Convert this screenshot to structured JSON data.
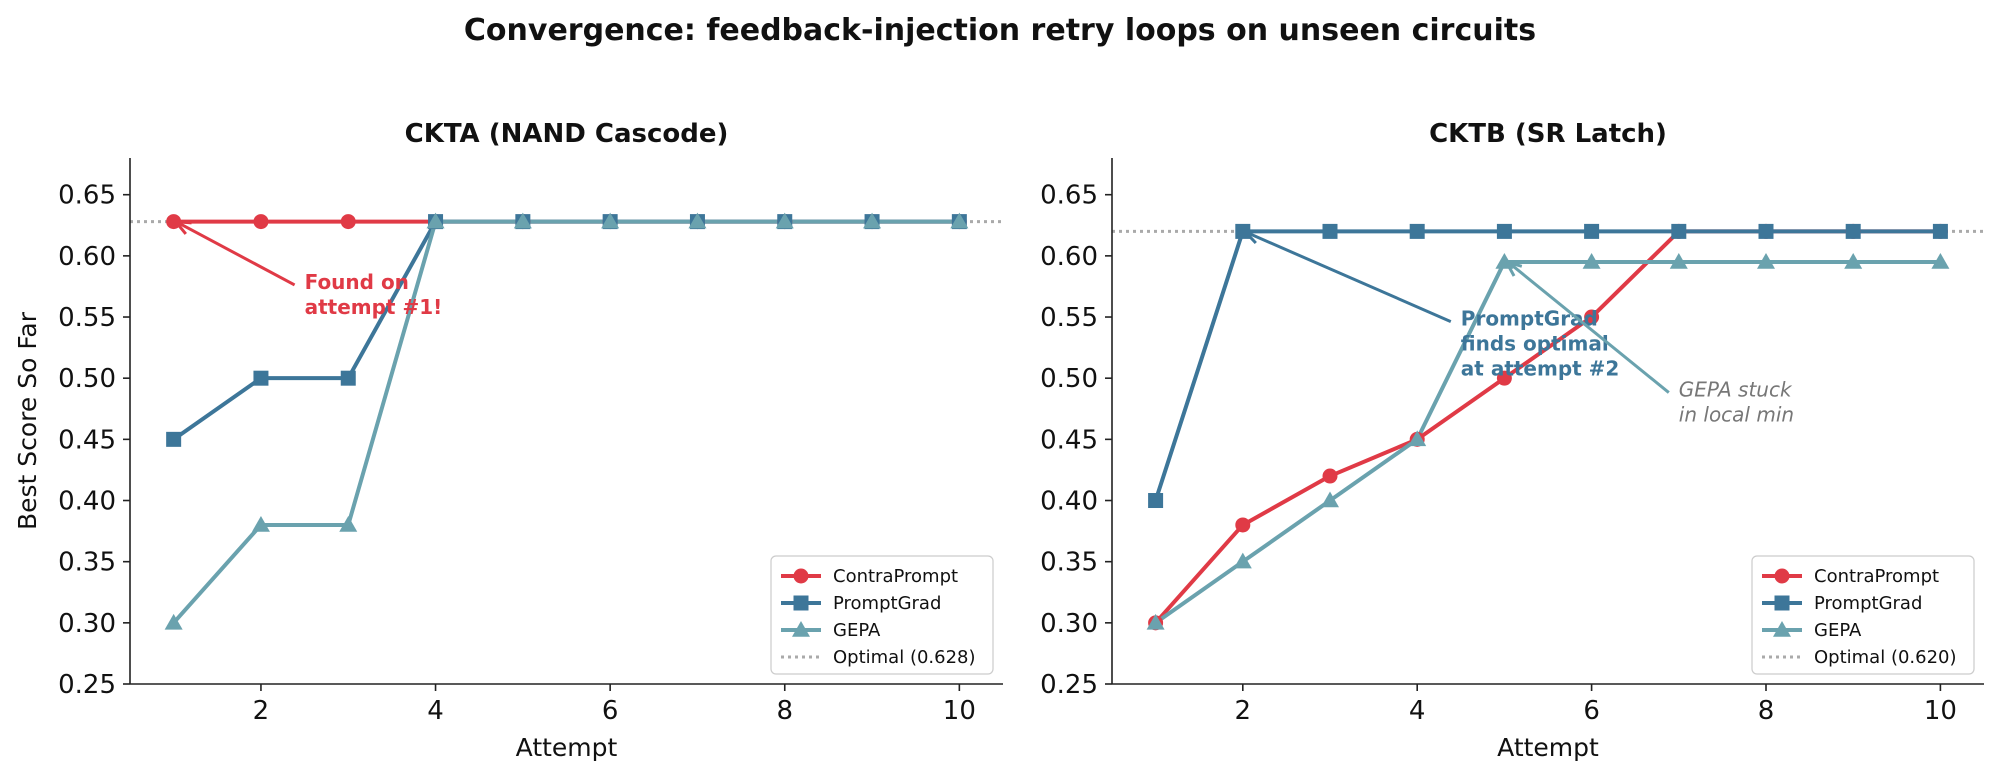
{
  "figure": {
    "title": "Convergence: feedback-injection retry loops on unseen circuits"
  },
  "colors": {
    "ContraPrompt": "#e03a46",
    "PromptGrad": "#3d7699",
    "GEPA": "#6aa2ae",
    "Optimal": "#aaaaaa"
  },
  "chart_data": [
    {
      "type": "line",
      "title": "CKTA (NAND Cascode)",
      "xlabel": "Attempt",
      "ylabel": "Best Score So Far",
      "xlim": [
        0.5,
        10.5
      ],
      "ylim": [
        0.25,
        0.68
      ],
      "xticks": [
        2,
        4,
        6,
        8,
        10
      ],
      "yticks": [
        0.25,
        0.3,
        0.35,
        0.4,
        0.45,
        0.5,
        0.55,
        0.6,
        0.65
      ],
      "x": [
        1,
        2,
        3,
        4,
        5,
        6,
        7,
        8,
        9,
        10
      ],
      "series": [
        {
          "name": "ContraPrompt",
          "marker": "circle",
          "values": [
            0.628,
            0.628,
            0.628,
            0.628,
            0.628,
            0.628,
            0.628,
            0.628,
            0.628,
            0.628
          ]
        },
        {
          "name": "PromptGrad",
          "marker": "square",
          "values": [
            0.45,
            0.5,
            0.5,
            0.628,
            0.628,
            0.628,
            0.628,
            0.628,
            0.628,
            0.628
          ]
        },
        {
          "name": "GEPA",
          "marker": "triangle",
          "values": [
            0.3,
            0.38,
            0.38,
            0.628,
            0.628,
            0.628,
            0.628,
            0.628,
            0.628,
            0.628
          ]
        }
      ],
      "optimal": {
        "label": "Optimal (0.628)",
        "value": 0.628
      },
      "legend": "lower right",
      "annotations": [
        {
          "lines": [
            "Found on",
            "attempt #1!"
          ],
          "style": "bold",
          "color": "#e03a46",
          "target": [
            1,
            0.628
          ],
          "text_at": [
            2.5,
            0.573
          ]
        }
      ]
    },
    {
      "type": "line",
      "title": "CKTB (SR Latch)",
      "xlabel": "Attempt",
      "ylabel": "",
      "xlim": [
        0.5,
        10.5
      ],
      "ylim": [
        0.25,
        0.68
      ],
      "xticks": [
        2,
        4,
        6,
        8,
        10
      ],
      "yticks": [
        0.25,
        0.3,
        0.35,
        0.4,
        0.45,
        0.5,
        0.55,
        0.6,
        0.65
      ],
      "x": [
        1,
        2,
        3,
        4,
        5,
        6,
        7,
        8,
        9,
        10
      ],
      "series": [
        {
          "name": "ContraPrompt",
          "marker": "circle",
          "values": [
            0.3,
            0.38,
            0.42,
            0.45,
            0.5,
            0.55,
            0.62,
            0.62,
            0.62,
            0.62
          ]
        },
        {
          "name": "PromptGrad",
          "marker": "square",
          "values": [
            0.4,
            0.62,
            0.62,
            0.62,
            0.62,
            0.62,
            0.62,
            0.62,
            0.62,
            0.62
          ]
        },
        {
          "name": "GEPA",
          "marker": "triangle",
          "values": [
            0.3,
            0.35,
            0.4,
            0.45,
            0.595,
            0.595,
            0.595,
            0.595,
            0.595,
            0.595
          ]
        }
      ],
      "optimal": {
        "label": "Optimal (0.620)",
        "value": 0.62
      },
      "legend": "lower right",
      "annotations": [
        {
          "lines": [
            "PromptGrad",
            "finds optimal",
            "at attempt #2"
          ],
          "style": "bold",
          "color": "#3d7699",
          "target": [
            2,
            0.62
          ],
          "text_at": [
            4.5,
            0.543
          ]
        },
        {
          "lines": [
            "GEPA stuck",
            "in local min"
          ],
          "style": "italic",
          "color": "#777777",
          "target": [
            5,
            0.595
          ],
          "text_at": [
            7,
            0.485
          ]
        }
      ]
    }
  ]
}
